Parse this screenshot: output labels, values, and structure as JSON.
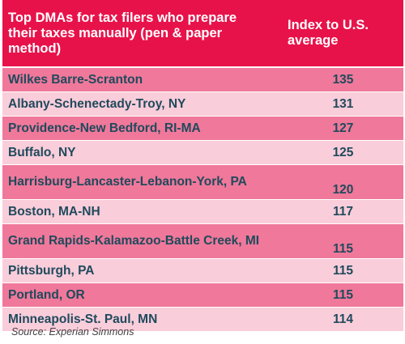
{
  "chart_data": {
    "type": "table",
    "columns": [
      "Top DMAs for tax filers who prepare their taxes manually (pen & paper method)",
      "Index to U.S. average"
    ],
    "rows": [
      {
        "name": "Wilkes Barre-Scranton",
        "value": 135
      },
      {
        "name": "Albany-Schenectady-Troy, NY",
        "value": 131
      },
      {
        "name": "Providence-New Bedford, RI-MA",
        "value": 127
      },
      {
        "name": "Buffalo, NY",
        "value": 125
      },
      {
        "name": "Harrisburg-Lancaster-Lebanon-York, PA",
        "value": 120
      },
      {
        "name": "Boston, MA-NH",
        "value": 117
      },
      {
        "name": "Grand Rapids-Kalamazoo-Battle Creek, MI",
        "value": 115
      },
      {
        "name": "Pittsburgh, PA",
        "value": 115
      },
      {
        "name": "Portland, OR",
        "value": 115
      },
      {
        "name": "Minneapolis-St. Paul, MN",
        "value": 114
      }
    ]
  },
  "source": "Source: Experian Simmons",
  "colors": {
    "header": "#e8124a",
    "row_dark": "#f0789a",
    "row_light": "#f9cdda",
    "text": "#1f4a5c"
  }
}
